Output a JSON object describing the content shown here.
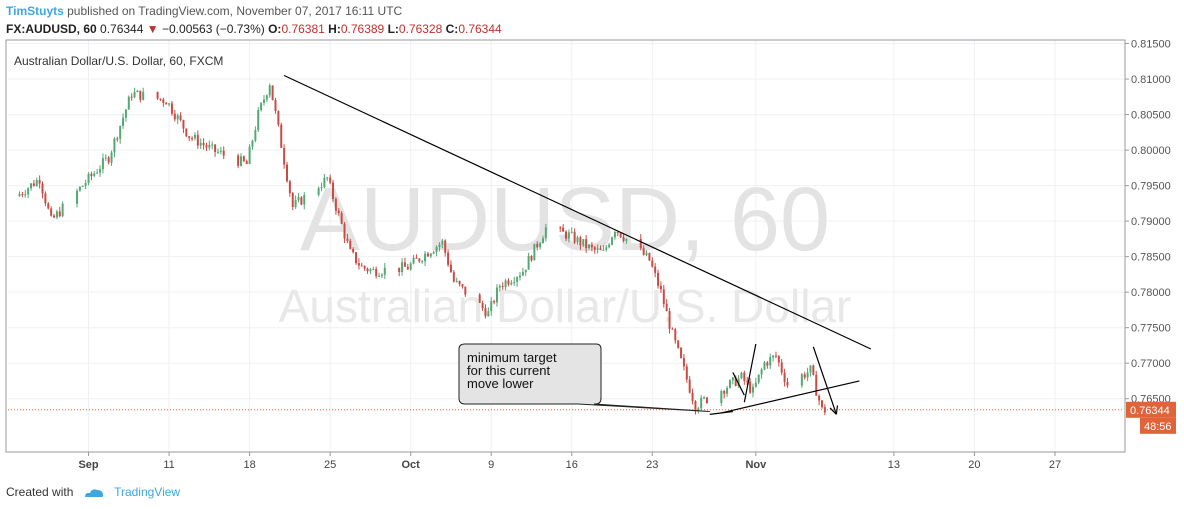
{
  "header": {
    "author": "TimStuyts",
    "published_text": " published on TradingView.com, November 07, 2017 16:11 UTC",
    "symbol": "FX:AUDUSD, 60",
    "last": "0.76344",
    "change_arrow": "▼",
    "change": "−0.00563 (−0.73%)",
    "o_label": "O:",
    "o_value": "0.76381",
    "h_label": "H:",
    "h_value": "0.76389",
    "l_label": "L:",
    "l_value": "0.76328",
    "c_label": "C:",
    "c_value": "0.76344"
  },
  "chart_data": {
    "type": "candlestick",
    "title": "Australian Dollar/U.S. Dollar, 60, FXCM",
    "watermark_line1": "AUDUSD, 60",
    "watermark_line2": "Australian Dollar/U.S. Dollar",
    "ylim": [
      0.7575,
      0.8155
    ],
    "y_ticks": [
      "0.81500",
      "0.81000",
      "0.80500",
      "0.80000",
      "0.79500",
      "0.79000",
      "0.78500",
      "0.78000",
      "0.77500",
      "0.77000",
      "0.76500"
    ],
    "x_tick_labels": [
      "Sep",
      "11",
      "18",
      "25",
      "Oct",
      "9",
      "16",
      "23",
      "Nov",
      "13",
      "20",
      "27"
    ],
    "x_tick_dates": [
      "2017-09-04",
      "2017-09-11",
      "2017-09-18",
      "2017-09-25",
      "2017-10-02",
      "2017-10-09",
      "2017-10-16",
      "2017-10-23",
      "2017-11-01",
      "2017-11-13",
      "2017-11-20",
      "2017-11-27"
    ],
    "bold_ticks": [
      "Sep",
      "Oct",
      "Nov"
    ],
    "price_series": {
      "name": "AUDUSD",
      "dates": [
        "2017-08-29",
        "2017-08-31",
        "2017-09-01",
        "2017-09-04",
        "2017-09-06",
        "2017-09-08",
        "2017-09-11",
        "2017-09-13",
        "2017-09-15",
        "2017-09-18",
        "2017-09-19",
        "2017-09-20",
        "2017-09-22",
        "2017-09-25",
        "2017-09-27",
        "2017-09-28",
        "2017-09-29",
        "2017-10-02",
        "2017-10-04",
        "2017-10-05",
        "2017-10-06",
        "2017-10-09",
        "2017-10-10",
        "2017-10-12",
        "2017-10-14",
        "2017-10-16",
        "2017-10-18",
        "2017-10-19",
        "2017-10-20",
        "2017-10-23",
        "2017-10-24",
        "2017-10-25",
        "2017-10-26",
        "2017-10-27",
        "2017-10-29",
        "2017-10-31",
        "2017-11-01",
        "2017-11-02",
        "2017-11-03",
        "2017-11-04",
        "2017-11-06",
        "2017-11-07"
      ],
      "values": [
        0.7935,
        0.796,
        0.79,
        0.7955,
        0.799,
        0.808,
        0.807,
        0.802,
        0.8,
        0.798,
        0.805,
        0.8095,
        0.792,
        0.796,
        0.7855,
        0.7835,
        0.783,
        0.7835,
        0.786,
        0.787,
        0.7815,
        0.777,
        0.781,
        0.783,
        0.789,
        0.788,
        0.786,
        0.7855,
        0.789,
        0.7845,
        0.78,
        0.774,
        0.769,
        0.764,
        0.766,
        0.768,
        0.766,
        0.77,
        0.771,
        0.767,
        0.769,
        0.7634
      ]
    },
    "current_price_label": "0.76344",
    "countdown_label": "48:56",
    "annotation": {
      "text_lines": [
        "minimum target",
        "for this current",
        "move lower"
      ]
    },
    "drawn_lines": [
      {
        "name": "downtrend-line",
        "points": [
          [
            "2017-09-21",
            0.8105
          ],
          [
            "2017-11-11",
            0.772
          ]
        ]
      },
      {
        "name": "neckline",
        "points": [
          [
            "2017-10-29",
            0.763
          ],
          [
            "2017-11-10",
            0.7675
          ]
        ]
      },
      {
        "name": "target-line",
        "points": [
          [
            "2017-10-28",
            0.7628
          ],
          [
            "2017-10-30",
            0.7632
          ]
        ]
      },
      {
        "name": "wave-a",
        "points": [
          [
            "2017-10-30",
            0.7687
          ],
          [
            "2017-10-31",
            0.7655
          ]
        ]
      },
      {
        "name": "wave-b",
        "points": [
          [
            "2017-10-31",
            0.7645
          ],
          [
            "2017-11-01",
            0.7727
          ]
        ]
      },
      {
        "name": "projection-arrow",
        "points": [
          [
            "2017-11-06",
            0.7723
          ],
          [
            "2017-11-08",
            0.7628
          ]
        ]
      }
    ],
    "grid": true,
    "colors": {
      "up": "#53a874",
      "down": "#c94c44",
      "trendline": "#000000",
      "price_line": "#e0633a",
      "grid": "#eef0f3"
    }
  },
  "footer": {
    "created_with": "Created with",
    "brand": "TradingView"
  }
}
